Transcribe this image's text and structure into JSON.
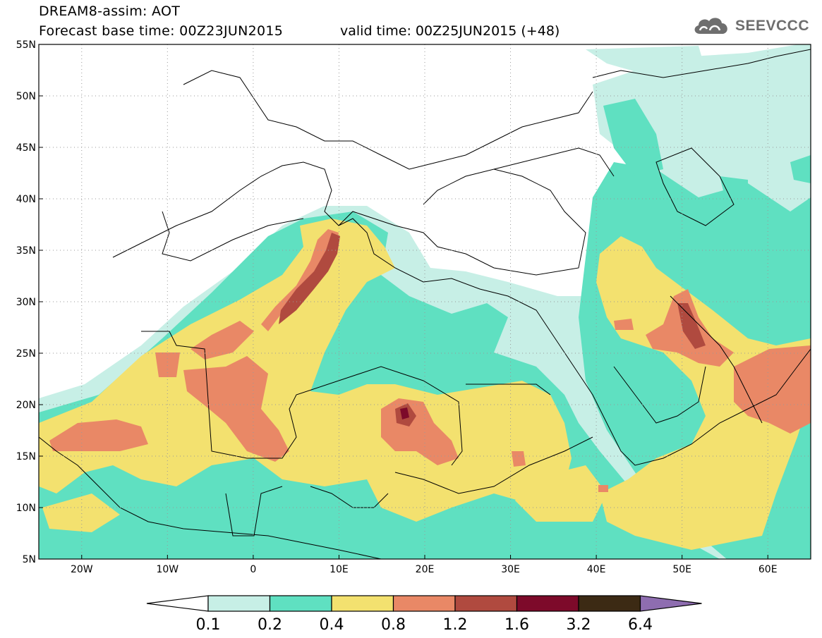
{
  "header": {
    "line1": "DREAM8-assim: AOT",
    "line2": "Forecast base time: 00Z23JUN2015",
    "line2b": "valid time: 00Z25JUN2015 (+48)"
  },
  "logo": {
    "text": "SEEVCCC",
    "icon": "cloud-icon"
  },
  "map": {
    "lat_labels": [
      "55N",
      "50N",
      "45N",
      "40N",
      "35N",
      "30N",
      "25N",
      "20N",
      "15N",
      "10N",
      "5N"
    ],
    "lon_labels": [
      "20W",
      "10W",
      "0",
      "10E",
      "20E",
      "30E",
      "40E",
      "50E",
      "60E"
    ],
    "extent": {
      "lon_min": -25,
      "lon_max": 65,
      "lat_min": 5,
      "lat_max": 55
    },
    "grid": "dotted"
  },
  "colorbar": {
    "labels": [
      "0.1",
      "0.2",
      "0.4",
      "0.8",
      "1.2",
      "1.6",
      "3.2",
      "6.4"
    ],
    "colors": [
      "#ffffff",
      "#c7efe6",
      "#5fe0c1",
      "#f3e16f",
      "#e98866",
      "#b04a3f",
      "#7d0a2a",
      "#3c2a14",
      "#8e6db0"
    ]
  },
  "palette": {
    "c01": "#c7efe6",
    "c02": "#5fe0c1",
    "c04": "#f3e16f",
    "c08": "#e98866",
    "c12": "#b04a3f",
    "c16": "#7d0a2a"
  }
}
